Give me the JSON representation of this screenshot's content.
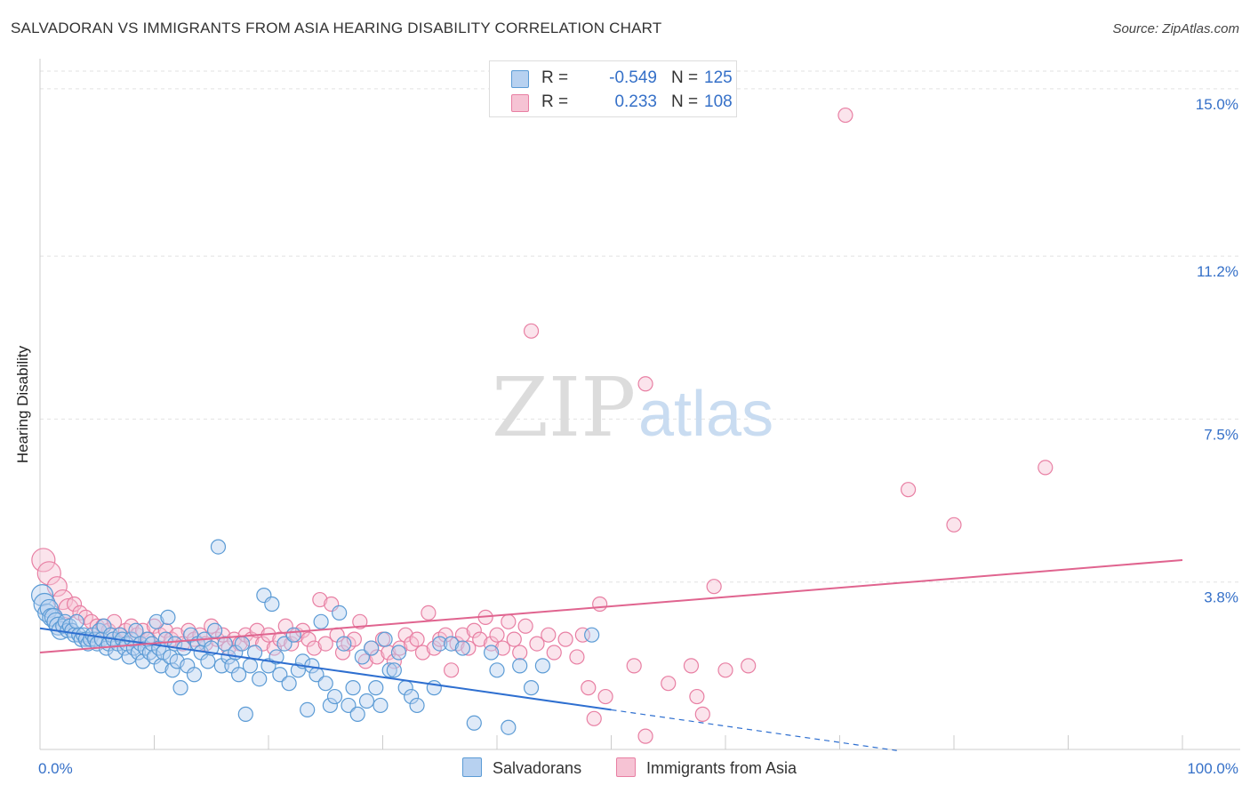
{
  "header": {
    "title": "SALVADORAN VS IMMIGRANTS FROM ASIA HEARING DISABILITY CORRELATION CHART",
    "source": "Source: ZipAtlas.com"
  },
  "legend_top": {
    "rows": [
      {
        "r_label": "R =",
        "r_value": "-0.549",
        "n_label": "N =",
        "n_value": "125"
      },
      {
        "r_label": "R =",
        "r_value": "0.233",
        "n_label": "N =",
        "n_value": "108"
      }
    ]
  },
  "watermark": {
    "zip": "ZIP",
    "atlas": "atlas"
  },
  "colors": {
    "blue": "#5b9bd5",
    "blue_fill": "#b7d1f0",
    "blue_line": "#2e6fd0",
    "pink": "#e87fa3",
    "pink_fill": "#f6c3d4",
    "pink_line": "#e0648f",
    "axis_text": "#3570c8"
  },
  "chart_data": {
    "type": "scatter",
    "title": "SALVADORAN VS IMMIGRANTS FROM ASIA HEARING DISABILITY CORRELATION CHART",
    "xlabel": "",
    "ylabel": "Hearing Disability",
    "x_tick_labels": [
      "0.0%",
      "100.0%"
    ],
    "y_tick_labels": [
      "3.8%",
      "7.5%",
      "11.2%",
      "15.0%"
    ],
    "y_ticks": [
      3.8,
      7.5,
      11.2,
      15.0
    ],
    "xlim": [
      0,
      100
    ],
    "ylim": [
      0,
      15.4
    ],
    "grid": true,
    "legend_position": "bottom",
    "series": [
      {
        "name": "Salvadorans",
        "color": "#5b9bd5",
        "trend": {
          "x0": 0,
          "y0": 2.75,
          "x1": 50,
          "y1": 0.9,
          "dashed_to": 75
        },
        "points": [
          [
            0.2,
            3.5
          ],
          [
            0.4,
            3.3
          ],
          [
            0.6,
            3.1
          ],
          [
            0.8,
            3.2
          ],
          [
            1.0,
            3.0
          ],
          [
            1.2,
            3.0
          ],
          [
            1.4,
            2.9
          ],
          [
            1.6,
            2.8
          ],
          [
            1.8,
            2.7
          ],
          [
            2.0,
            2.8
          ],
          [
            2.2,
            2.9
          ],
          [
            2.4,
            2.7
          ],
          [
            2.6,
            2.8
          ],
          [
            2.8,
            2.7
          ],
          [
            3.0,
            2.6
          ],
          [
            3.2,
            2.9
          ],
          [
            3.4,
            2.6
          ],
          [
            3.6,
            2.5
          ],
          [
            3.8,
            2.6
          ],
          [
            4.0,
            2.5
          ],
          [
            4.2,
            2.4
          ],
          [
            4.4,
            2.5
          ],
          [
            4.6,
            2.6
          ],
          [
            4.8,
            2.5
          ],
          [
            5.0,
            2.4
          ],
          [
            5.2,
            2.7
          ],
          [
            5.4,
            2.5
          ],
          [
            5.6,
            2.8
          ],
          [
            5.8,
            2.3
          ],
          [
            6.0,
            2.4
          ],
          [
            6.2,
            2.6
          ],
          [
            6.4,
            2.5
          ],
          [
            6.6,
            2.2
          ],
          [
            6.8,
            2.4
          ],
          [
            7.0,
            2.6
          ],
          [
            7.2,
            2.5
          ],
          [
            7.4,
            2.3
          ],
          [
            7.6,
            2.4
          ],
          [
            7.8,
            2.1
          ],
          [
            8.0,
            2.5
          ],
          [
            8.2,
            2.3
          ],
          [
            8.4,
            2.7
          ],
          [
            8.6,
            2.2
          ],
          [
            8.8,
            2.4
          ],
          [
            9.0,
            2.0
          ],
          [
            9.2,
            2.3
          ],
          [
            9.4,
            2.5
          ],
          [
            9.6,
            2.2
          ],
          [
            9.8,
            2.4
          ],
          [
            10.0,
            2.1
          ],
          [
            10.2,
            2.9
          ],
          [
            10.4,
            2.3
          ],
          [
            10.6,
            1.9
          ],
          [
            10.8,
            2.2
          ],
          [
            11.0,
            2.5
          ],
          [
            11.2,
            3.0
          ],
          [
            11.4,
            2.1
          ],
          [
            11.6,
            1.8
          ],
          [
            11.8,
            2.4
          ],
          [
            12.0,
            2.0
          ],
          [
            12.3,
            1.4
          ],
          [
            12.6,
            2.3
          ],
          [
            12.9,
            1.9
          ],
          [
            13.2,
            2.6
          ],
          [
            13.5,
            1.7
          ],
          [
            13.8,
            2.4
          ],
          [
            14.1,
            2.2
          ],
          [
            14.4,
            2.5
          ],
          [
            14.7,
            2.0
          ],
          [
            15.0,
            2.3
          ],
          [
            15.3,
            2.7
          ],
          [
            15.6,
            4.6
          ],
          [
            15.9,
            1.9
          ],
          [
            16.2,
            2.4
          ],
          [
            16.5,
            2.1
          ],
          [
            16.8,
            1.9
          ],
          [
            17.1,
            2.2
          ],
          [
            17.4,
            1.7
          ],
          [
            17.7,
            2.4
          ],
          [
            18.0,
            0.8
          ],
          [
            18.4,
            1.9
          ],
          [
            18.8,
            2.2
          ],
          [
            19.2,
            1.6
          ],
          [
            19.6,
            3.5
          ],
          [
            20.0,
            1.9
          ],
          [
            20.3,
            3.3
          ],
          [
            20.7,
            2.1
          ],
          [
            21.0,
            1.7
          ],
          [
            21.4,
            2.4
          ],
          [
            21.8,
            1.5
          ],
          [
            22.2,
            2.6
          ],
          [
            22.6,
            1.8
          ],
          [
            23.0,
            2.0
          ],
          [
            23.4,
            0.9
          ],
          [
            23.8,
            1.9
          ],
          [
            24.2,
            1.7
          ],
          [
            24.6,
            2.9
          ],
          [
            25.0,
            1.5
          ],
          [
            25.4,
            1.0
          ],
          [
            25.8,
            1.2
          ],
          [
            26.2,
            3.1
          ],
          [
            26.6,
            2.4
          ],
          [
            27.0,
            1.0
          ],
          [
            27.4,
            1.4
          ],
          [
            27.8,
            0.8
          ],
          [
            28.2,
            2.1
          ],
          [
            28.6,
            1.1
          ],
          [
            29.0,
            2.3
          ],
          [
            29.4,
            1.4
          ],
          [
            29.8,
            1.0
          ],
          [
            30.2,
            2.5
          ],
          [
            30.6,
            1.8
          ],
          [
            31.0,
            1.8
          ],
          [
            31.4,
            2.2
          ],
          [
            32.0,
            1.4
          ],
          [
            32.5,
            1.2
          ],
          [
            33.0,
            1.0
          ],
          [
            34.5,
            1.4
          ],
          [
            35.0,
            2.4
          ],
          [
            36.0,
            2.4
          ],
          [
            37.0,
            2.3
          ],
          [
            38.0,
            0.6
          ],
          [
            39.5,
            2.2
          ],
          [
            41.0,
            0.5
          ],
          [
            42.0,
            1.9
          ],
          [
            43.0,
            1.4
          ],
          [
            44.0,
            1.9
          ],
          [
            48.3,
            2.6
          ],
          [
            40.0,
            1.8
          ]
        ]
      },
      {
        "name": "Immigrants from Asia",
        "color": "#e87fa3",
        "trend": {
          "x0": 0,
          "y0": 2.2,
          "x1": 100,
          "y1": 4.3
        },
        "points": [
          [
            0.3,
            4.3
          ],
          [
            0.8,
            4.0
          ],
          [
            1.5,
            3.7
          ],
          [
            2.0,
            3.4
          ],
          [
            2.5,
            3.2
          ],
          [
            3.0,
            3.3
          ],
          [
            3.5,
            3.1
          ],
          [
            4.0,
            3.0
          ],
          [
            4.5,
            2.9
          ],
          [
            5.0,
            2.8
          ],
          [
            5.5,
            2.8
          ],
          [
            6.0,
            2.7
          ],
          [
            6.5,
            2.9
          ],
          [
            7.0,
            2.6
          ],
          [
            7.5,
            2.7
          ],
          [
            8.0,
            2.8
          ],
          [
            8.5,
            2.6
          ],
          [
            9.0,
            2.7
          ],
          [
            9.5,
            2.5
          ],
          [
            10.0,
            2.8
          ],
          [
            10.5,
            2.6
          ],
          [
            11.0,
            2.7
          ],
          [
            11.5,
            2.5
          ],
          [
            12.0,
            2.6
          ],
          [
            12.5,
            2.4
          ],
          [
            13.0,
            2.7
          ],
          [
            13.5,
            2.5
          ],
          [
            14.0,
            2.6
          ],
          [
            14.5,
            2.4
          ],
          [
            15.0,
            2.8
          ],
          [
            15.5,
            2.5
          ],
          [
            16.0,
            2.6
          ],
          [
            16.5,
            2.3
          ],
          [
            17.0,
            2.5
          ],
          [
            17.5,
            2.4
          ],
          [
            18.0,
            2.6
          ],
          [
            18.5,
            2.5
          ],
          [
            19.0,
            2.7
          ],
          [
            19.5,
            2.4
          ],
          [
            20.0,
            2.6
          ],
          [
            20.5,
            2.3
          ],
          [
            21.0,
            2.5
          ],
          [
            21.5,
            2.8
          ],
          [
            22.0,
            2.4
          ],
          [
            22.5,
            2.6
          ],
          [
            23.0,
            2.7
          ],
          [
            23.5,
            2.5
          ],
          [
            24.0,
            2.3
          ],
          [
            24.5,
            3.4
          ],
          [
            25.0,
            2.4
          ],
          [
            25.5,
            3.3
          ],
          [
            26.0,
            2.6
          ],
          [
            26.5,
            2.2
          ],
          [
            27.0,
            2.4
          ],
          [
            27.5,
            2.5
          ],
          [
            28.0,
            2.9
          ],
          [
            28.5,
            2.0
          ],
          [
            29.0,
            2.3
          ],
          [
            29.5,
            2.1
          ],
          [
            30.0,
            2.5
          ],
          [
            30.5,
            2.2
          ],
          [
            31.0,
            2.0
          ],
          [
            31.5,
            2.3
          ],
          [
            32.0,
            2.6
          ],
          [
            32.5,
            2.4
          ],
          [
            33.0,
            2.5
          ],
          [
            33.5,
            2.2
          ],
          [
            34.0,
            3.1
          ],
          [
            34.5,
            2.3
          ],
          [
            35.0,
            2.5
          ],
          [
            35.5,
            2.6
          ],
          [
            36.0,
            1.8
          ],
          [
            36.5,
            2.4
          ],
          [
            37.0,
            2.6
          ],
          [
            37.5,
            2.3
          ],
          [
            38.0,
            2.7
          ],
          [
            38.5,
            2.5
          ],
          [
            39.0,
            3.0
          ],
          [
            39.5,
            2.4
          ],
          [
            40.0,
            2.6
          ],
          [
            40.5,
            2.3
          ],
          [
            41.0,
            2.9
          ],
          [
            41.5,
            2.5
          ],
          [
            42.0,
            2.2
          ],
          [
            42.5,
            2.8
          ],
          [
            43.5,
            2.4
          ],
          [
            44.5,
            2.6
          ],
          [
            45.0,
            2.2
          ],
          [
            46.0,
            2.5
          ],
          [
            47.0,
            2.1
          ],
          [
            47.5,
            2.6
          ],
          [
            48.5,
            0.7
          ],
          [
            49.0,
            3.3
          ],
          [
            48.0,
            1.4
          ],
          [
            49.5,
            1.2
          ],
          [
            52.0,
            1.9
          ],
          [
            53.0,
            0.3
          ],
          [
            55.0,
            1.5
          ],
          [
            57.0,
            1.9
          ],
          [
            58.0,
            0.8
          ],
          [
            59.0,
            3.7
          ],
          [
            60.0,
            1.8
          ],
          [
            62.0,
            1.9
          ],
          [
            76.0,
            5.9
          ],
          [
            80.0,
            5.1
          ],
          [
            88.0,
            6.4
          ],
          [
            70.5,
            14.4
          ],
          [
            43.0,
            9.5
          ],
          [
            53.0,
            8.3
          ],
          [
            57.5,
            1.2
          ]
        ]
      }
    ]
  },
  "bottom_legend": {
    "items": [
      {
        "label": "Salvadorans"
      },
      {
        "label": "Immigrants from Asia"
      }
    ]
  }
}
